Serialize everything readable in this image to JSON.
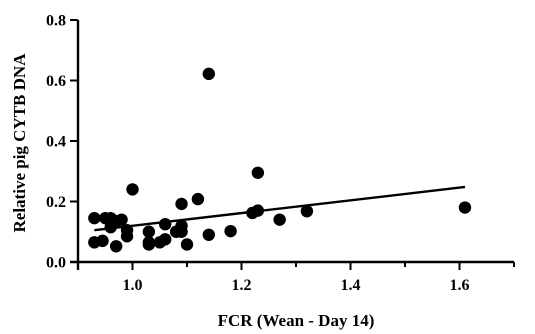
{
  "chart_data": {
    "type": "scatter",
    "title": "",
    "xlabel": "FCR (Wean - Day 14)",
    "ylabel": "Relative pig CYTB DNA",
    "xlim": [
      0.9,
      1.7
    ],
    "ylim": [
      0.0,
      0.8
    ],
    "xticks": [
      "1.0",
      "1.2",
      "1.4",
      "1.6"
    ],
    "yticks": [
      "0.0",
      "0.2",
      "0.4",
      "0.6",
      "0.8"
    ],
    "grid": false,
    "legend": "none",
    "marker_color": "#000000",
    "series": [
      {
        "points": [
          [
            0.93,
            0.145
          ],
          [
            0.93,
            0.065
          ],
          [
            0.945,
            0.07
          ],
          [
            0.95,
            0.145
          ],
          [
            0.96,
            0.145
          ],
          [
            0.96,
            0.115
          ],
          [
            0.97,
            0.135
          ],
          [
            0.97,
            0.052
          ],
          [
            0.98,
            0.14
          ],
          [
            0.99,
            0.105
          ],
          [
            0.99,
            0.085
          ],
          [
            1.0,
            0.24
          ],
          [
            1.03,
            0.1
          ],
          [
            1.03,
            0.065
          ],
          [
            1.03,
            0.058
          ],
          [
            1.05,
            0.065
          ],
          [
            1.06,
            0.075
          ],
          [
            1.06,
            0.125
          ],
          [
            1.08,
            0.1
          ],
          [
            1.09,
            0.192
          ],
          [
            1.09,
            0.12
          ],
          [
            1.09,
            0.1
          ],
          [
            1.1,
            0.058
          ],
          [
            1.12,
            0.208
          ],
          [
            1.14,
            0.622
          ],
          [
            1.14,
            0.09
          ],
          [
            1.18,
            0.102
          ],
          [
            1.22,
            0.162
          ],
          [
            1.23,
            0.295
          ],
          [
            1.23,
            0.17
          ],
          [
            1.27,
            0.14
          ],
          [
            1.32,
            0.168
          ],
          [
            1.61,
            0.18
          ]
        ]
      }
    ],
    "trendline": {
      "x": [
        0.93,
        1.61
      ],
      "y": [
        0.105,
        0.248
      ]
    }
  }
}
